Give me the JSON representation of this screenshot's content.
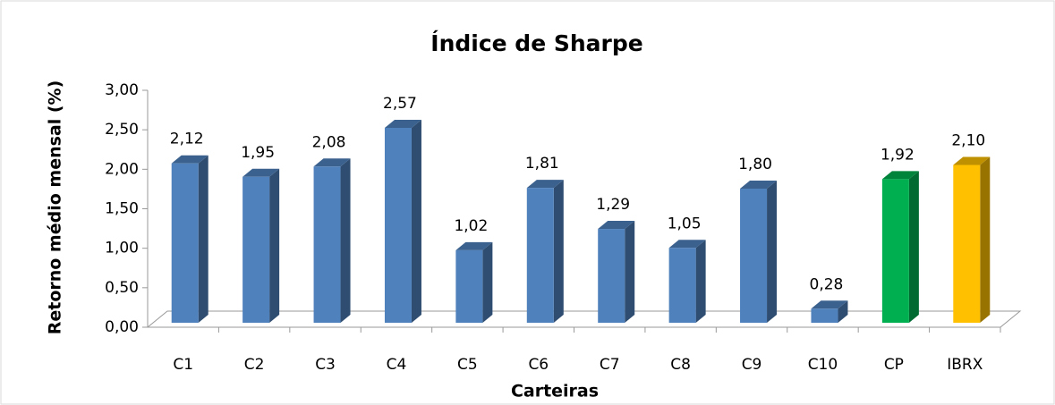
{
  "chart_data": {
    "type": "bar",
    "title": "Índice de Sharpe",
    "x_label": "Carteiras",
    "y_label": "Retorno  médio  mensal (%)",
    "categories": [
      "C1",
      "C2",
      "C3",
      "C4",
      "C5",
      "C6",
      "C7",
      "C8",
      "C9",
      "C10",
      "CP",
      "IBRX"
    ],
    "values": [
      2.12,
      1.95,
      2.08,
      2.57,
      1.02,
      1.81,
      1.29,
      1.05,
      1.8,
      0.28,
      1.92,
      2.1
    ],
    "value_labels": [
      "2,12",
      "1,95",
      "2,08",
      "2,57",
      "1,02",
      "1,81",
      "1,29",
      "1,05",
      "1,80",
      "0,28",
      "1,92",
      "2,10"
    ],
    "colors": [
      "#4f81bd",
      "#4f81bd",
      "#4f81bd",
      "#4f81bd",
      "#4f81bd",
      "#4f81bd",
      "#4f81bd",
      "#4f81bd",
      "#4f81bd",
      "#4f81bd",
      "#00b050",
      "#ffc000"
    ],
    "ylim": [
      0,
      3
    ],
    "yticks": [
      {
        "value": 0,
        "label": "0,00"
      },
      {
        "value": 0.5,
        "label": "0,50"
      },
      {
        "value": 1,
        "label": "1,00"
      },
      {
        "value": 1.5,
        "label": "1,50"
      },
      {
        "value": 2,
        "label": "2,00"
      },
      {
        "value": 2.5,
        "label": "2,50"
      },
      {
        "value": 3,
        "label": "3,00"
      }
    ]
  }
}
